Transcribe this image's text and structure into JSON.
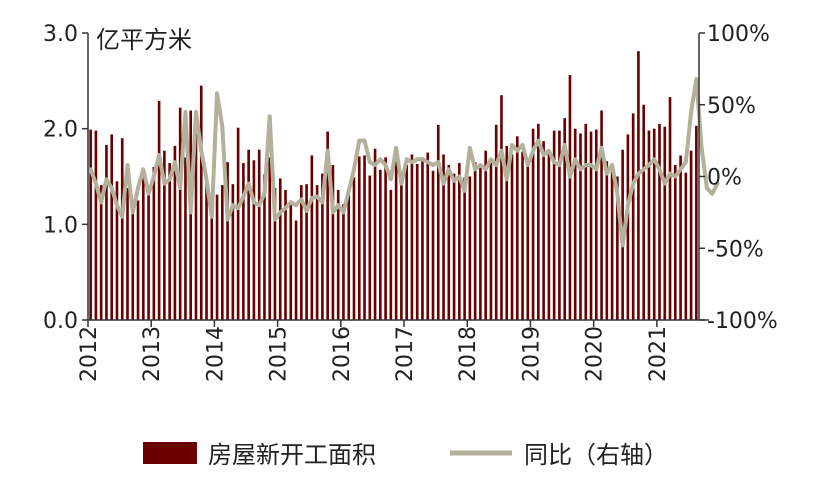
{
  "chart_data": {
    "type": "bar+line",
    "unit_label": "亿平方米",
    "x_labels": [
      "2012",
      "2013",
      "2014",
      "2015",
      "2016",
      "2017",
      "2018",
      "2019",
      "2020",
      "2021"
    ],
    "y_left": {
      "min": 0.0,
      "max": 3.0,
      "ticks": [
        "0.0",
        "1.0",
        "2.0",
        "3.0"
      ]
    },
    "y_right": {
      "min": -100,
      "max": 100,
      "ticks": [
        "-100%",
        "-50%",
        "0%",
        "50%",
        "100%"
      ]
    },
    "grid": false,
    "legend_position": "bottom",
    "colors": {
      "bars": "#6b0000",
      "line": "#b3b09c",
      "axis": "#333333"
    },
    "series": [
      {
        "name": "房屋新开工面积",
        "kind": "bar",
        "axis": "left",
        "values": [
          1.99,
          1.98,
          1.41,
          1.83,
          1.94,
          1.45,
          1.9,
          1.38,
          1.18,
          1.25,
          1.55,
          1.36,
          1.6,
          2.29,
          1.77,
          1.64,
          1.82,
          2.22,
          1.7,
          2.19,
          1.97,
          2.45,
          1.47,
          1.25,
          1.31,
          1.41,
          1.65,
          1.42,
          2.01,
          1.64,
          1.78,
          1.67,
          1.78,
          1.52,
          1.7,
          1.38,
          1.48,
          1.36,
          1.25,
          1.04,
          1.41,
          1.42,
          1.72,
          1.41,
          1.53,
          1.97,
          1.62,
          1.36,
          1.21,
          1.36,
          1.49,
          1.71,
          1.72,
          1.51,
          1.79,
          1.57,
          1.7,
          1.36,
          1.67,
          1.47,
          1.62,
          1.73,
          1.63,
          1.7,
          1.75,
          1.56,
          2.04,
          1.73,
          1.62,
          1.53,
          1.64,
          1.49,
          1.5,
          1.65,
          1.59,
          1.77,
          1.68,
          2.04,
          2.35,
          1.82,
          1.73,
          1.92,
          1.76,
          1.62,
          2.0,
          2.05,
          1.87,
          1.75,
          1.98,
          1.98,
          2.11,
          2.56,
          2.0,
          1.95,
          2.05,
          1.97,
          1.99,
          2.19,
          1.66,
          1.55,
          1.5,
          1.78,
          1.94,
          2.16,
          2.81,
          2.25,
          1.98,
          2.0,
          2.05,
          2.02,
          2.33,
          1.62,
          1.72,
          1.54,
          1.77,
          2.03
        ]
      },
      {
        "name": "同比（右轴）",
        "kind": "line",
        "axis": "right",
        "values": [
          5,
          -5,
          -18,
          -2,
          -8,
          -20,
          -28,
          8,
          -25,
          -8,
          5,
          -12,
          0,
          15,
          -5,
          -2,
          10,
          -8,
          45,
          -25,
          45,
          18,
          -2,
          -28,
          58,
          35,
          -30,
          -20,
          -22,
          -14,
          -5,
          -18,
          -20,
          -12,
          42,
          -30,
          -25,
          -22,
          -18,
          -20,
          -16,
          -24,
          -15,
          -14,
          -18,
          18,
          -25,
          -20,
          -25,
          -10,
          5,
          25,
          25,
          10,
          8,
          12,
          8,
          -2,
          20,
          -5,
          12,
          10,
          12,
          12,
          10,
          8,
          10,
          -5,
          5,
          -3,
          0,
          -10,
          20,
          5,
          8,
          5,
          12,
          8,
          18,
          -2,
          22,
          18,
          22,
          8,
          18,
          25,
          15,
          18,
          10,
          8,
          22,
          0,
          12,
          5,
          8,
          8,
          5,
          20,
          2,
          8,
          -12,
          -48,
          -20,
          -5,
          2,
          5,
          8,
          12,
          5,
          -5,
          2,
          0,
          5,
          10,
          45,
          68,
          20,
          -8,
          -12,
          -5
        ]
      }
    ]
  }
}
